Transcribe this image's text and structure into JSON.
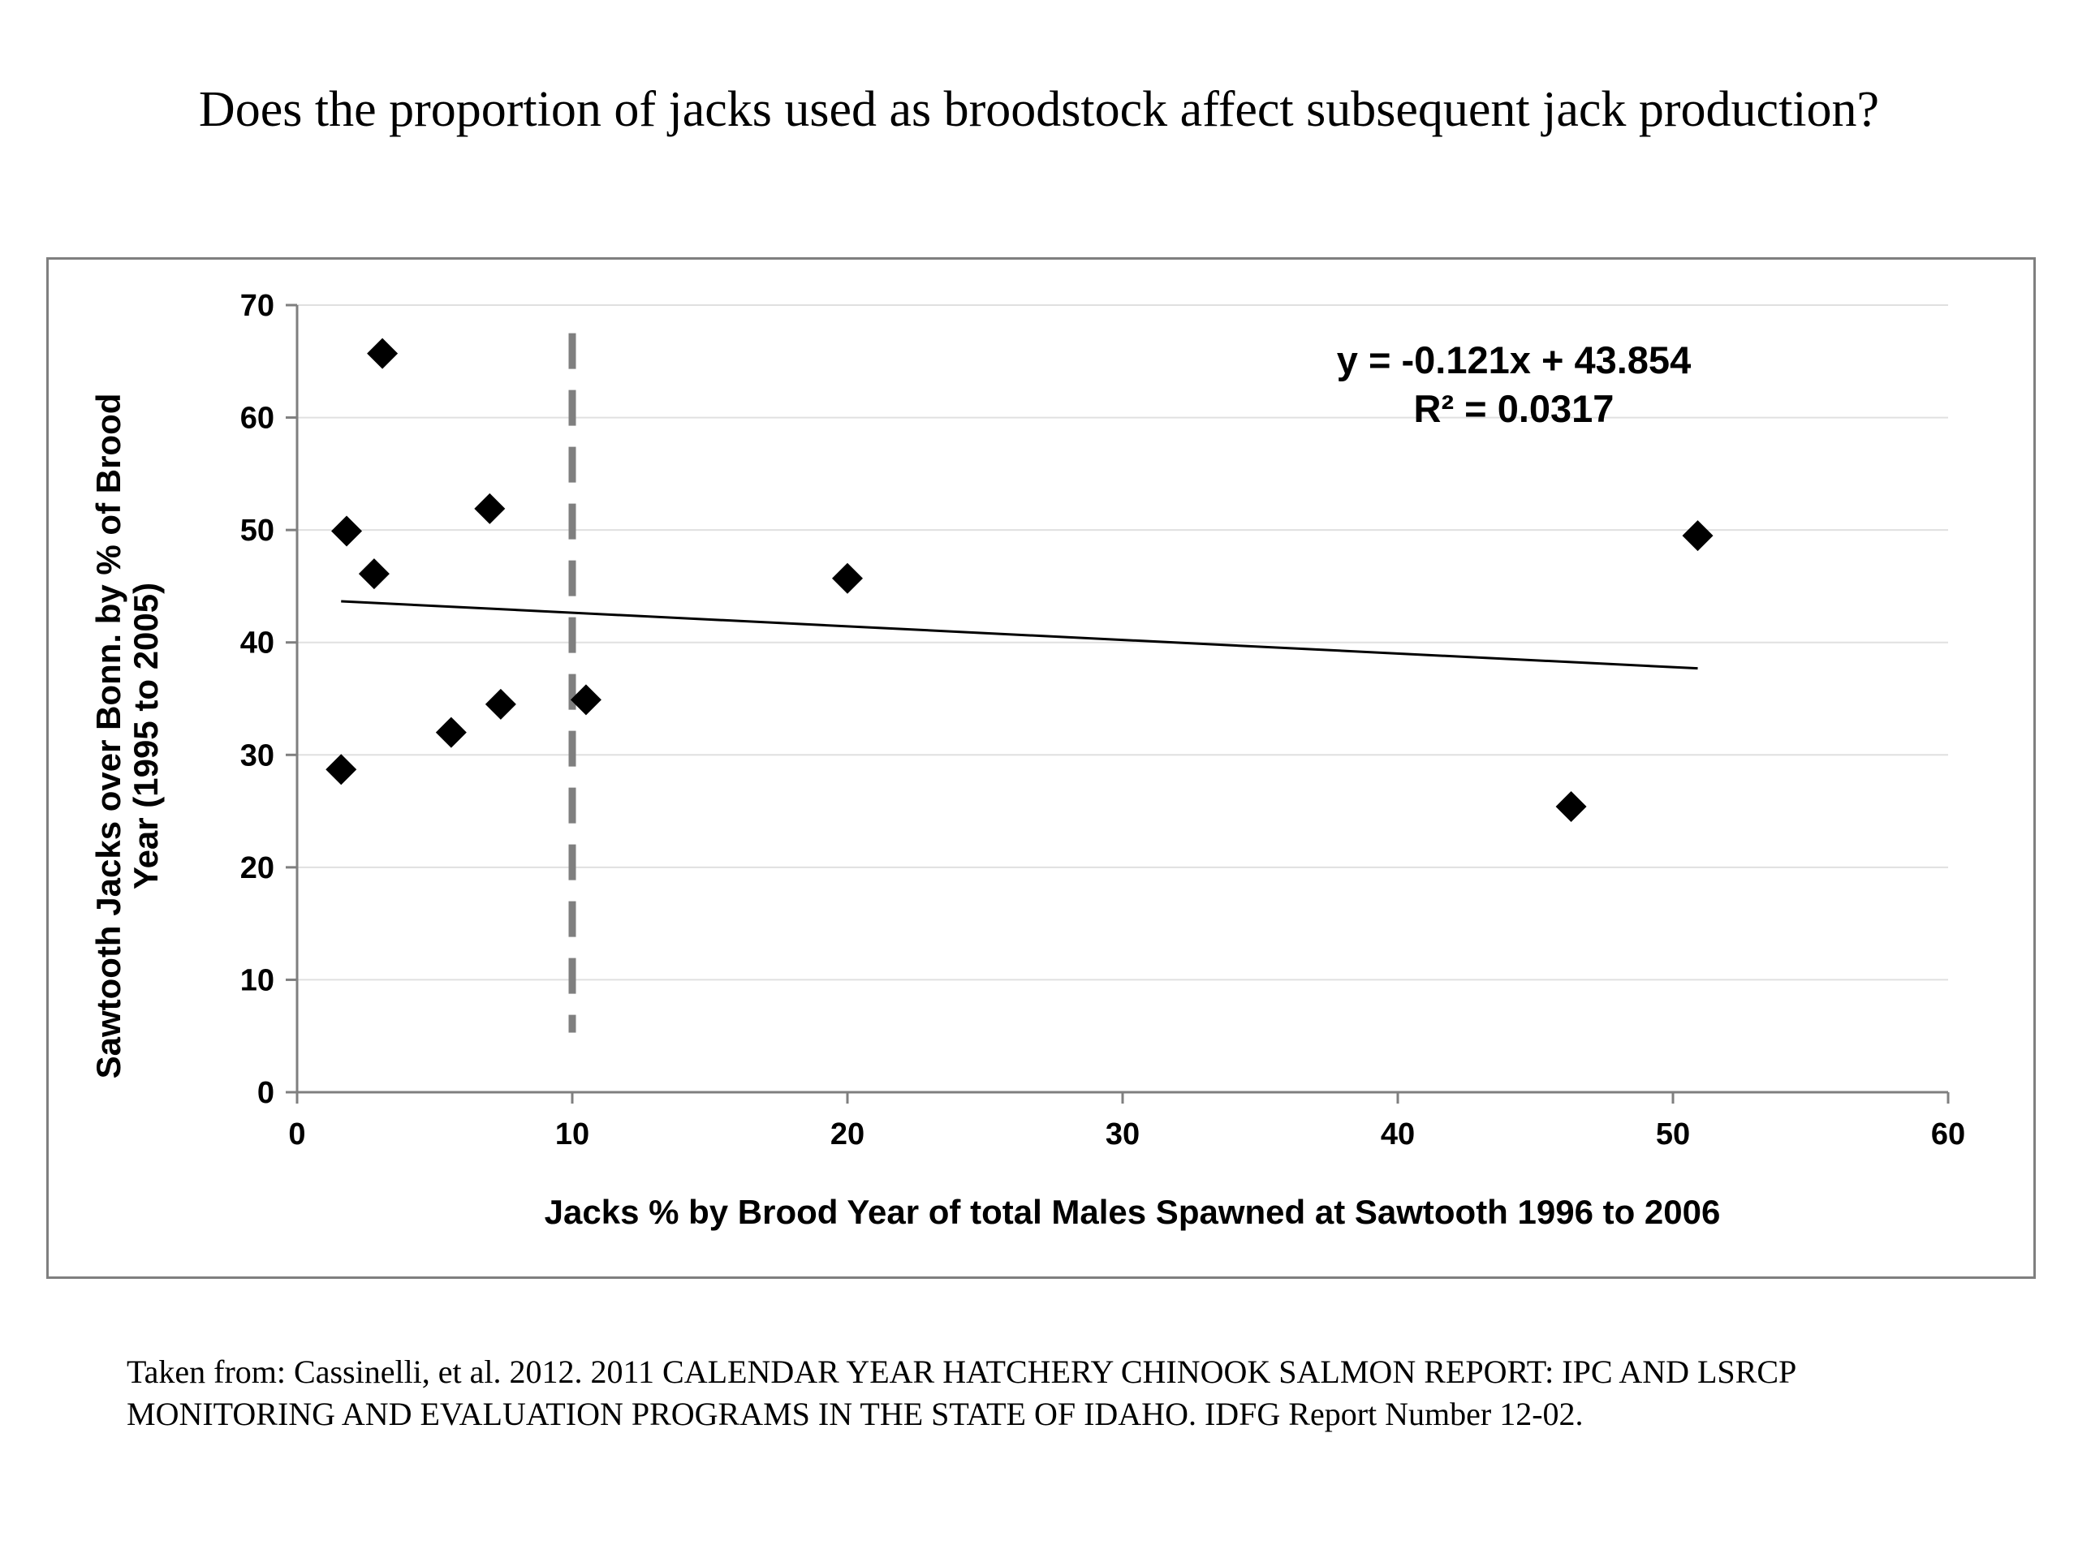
{
  "page": {
    "title": "Does the proportion of jacks used as broodstock affect subsequent jack production?",
    "source_lines": [
      "Taken from: Cassinelli, et al. 2012. 2011 CALENDAR YEAR HATCHERY CHINOOK SALMON REPORT: IPC AND LSRCP",
      "MONITORING AND EVALUATION PROGRAMS IN THE STATE OF IDAHO. IDFG Report Number 12-02."
    ]
  },
  "chart_data": {
    "type": "scatter",
    "title": "",
    "xlabel": "Jacks % by Brood Year of total Males Spawned at Sawtooth 1996 to 2006",
    "ylabel_lines": [
      "Sawtooth Jacks over Bonn. by % of Brood",
      "Year (1995 to 2005)"
    ],
    "xlim": [
      0,
      60
    ],
    "ylim": [
      0,
      70
    ],
    "x_ticks": [
      0,
      10,
      20,
      30,
      40,
      50,
      60
    ],
    "y_ticks": [
      0,
      10,
      20,
      30,
      40,
      50,
      60,
      70
    ],
    "grid": "horizontal",
    "marker": "diamond",
    "points": [
      {
        "x": 1.6,
        "y": 28.7
      },
      {
        "x": 1.8,
        "y": 49.9
      },
      {
        "x": 2.8,
        "y": 46.1
      },
      {
        "x": 3.1,
        "y": 65.7
      },
      {
        "x": 5.6,
        "y": 32.0
      },
      {
        "x": 7.0,
        "y": 51.9
      },
      {
        "x": 7.4,
        "y": 34.5
      },
      {
        "x": 10.5,
        "y": 34.9
      },
      {
        "x": 20.0,
        "y": 45.7
      },
      {
        "x": 46.3,
        "y": 25.4
      },
      {
        "x": 50.9,
        "y": 49.5
      }
    ],
    "trendline": {
      "slope": -0.121,
      "intercept": 43.854,
      "x_range": [
        1.6,
        50.9
      ]
    },
    "equation_lines": [
      "y = -0.121x + 43.854",
      "R² = 0.0317"
    ],
    "reference_line": {
      "x": 10,
      "y_range": [
        5.3,
        67.5
      ],
      "style": "dashed",
      "color": "#7f7f7f"
    },
    "colors": {
      "points": "#000000",
      "trendline": "#000000",
      "gridlines": "#e0e0e0",
      "axes": "#7f7f7f"
    }
  }
}
